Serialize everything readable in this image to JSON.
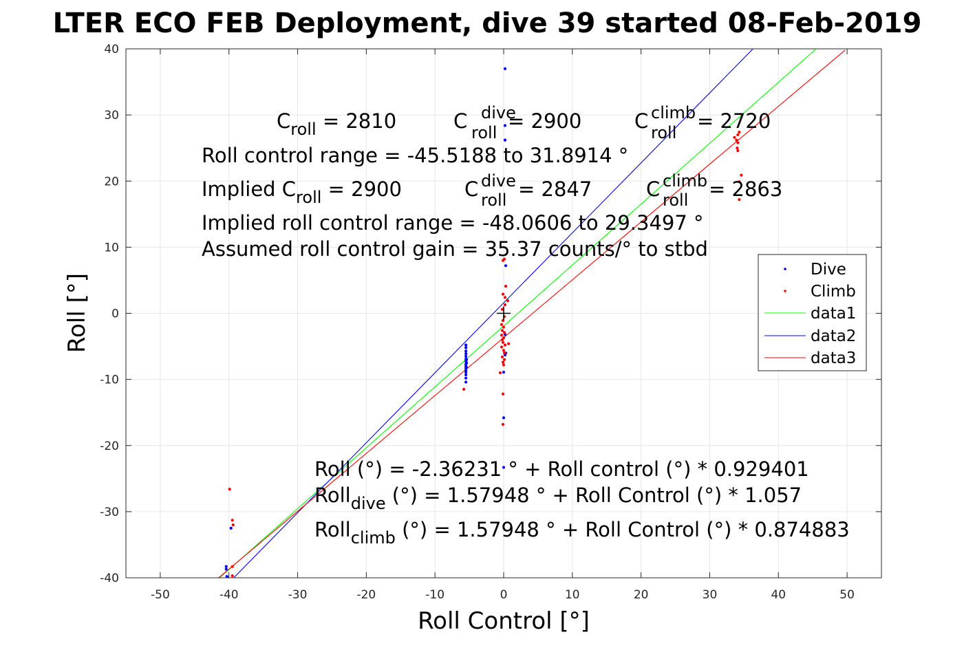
{
  "chart_data": {
    "type": "scatter",
    "title": "LTER ECO FEB Deployment, dive 39 started 08-Feb-2019",
    "xlabel": "Roll Control [°]",
    "ylabel": "Roll [°]",
    "xlim": [
      -55,
      55
    ],
    "ylim": [
      -40,
      40
    ],
    "xticks": [
      -50,
      -40,
      -30,
      -20,
      -10,
      0,
      10,
      20,
      30,
      40,
      50
    ],
    "yticks": [
      -40,
      -30,
      -20,
      -10,
      0,
      10,
      20,
      30,
      40
    ],
    "grid": true,
    "legend_placement": "right",
    "legend": [
      "Dive",
      "Climb",
      "data1",
      "data2",
      "data3"
    ],
    "marker": [
      0,
      0
    ],
    "series": [
      {
        "name": "Dive",
        "kind": "points",
        "color": "#0000ff",
        "points": [
          [
            -40.4,
            -38.3
          ],
          [
            -40.4,
            -38.7
          ],
          [
            -40.3,
            -39.8
          ],
          [
            -40.2,
            -40.0
          ],
          [
            -39.7,
            -32.5
          ],
          [
            -5.5,
            -4.8
          ],
          [
            -5.5,
            -5.2
          ],
          [
            -5.5,
            -5.7
          ],
          [
            -5.5,
            -6.1
          ],
          [
            -5.5,
            -6.5
          ],
          [
            -5.5,
            -6.9
          ],
          [
            -5.5,
            -7.3
          ],
          [
            -5.5,
            -7.7
          ],
          [
            -5.5,
            -8.0
          ],
          [
            -5.5,
            -8.3
          ],
          [
            -5.5,
            -8.6
          ],
          [
            -5.5,
            -8.9
          ],
          [
            -5.5,
            -9.3
          ],
          [
            -5.5,
            -9.8
          ],
          [
            -5.5,
            -10.4
          ],
          [
            -5.4,
            -7.0
          ],
          [
            -5.4,
            -7.5
          ],
          [
            -5.4,
            -8.2
          ],
          [
            0.2,
            37.0
          ],
          [
            0.2,
            28.4
          ],
          [
            0.2,
            26.2
          ],
          [
            0.3,
            7.2
          ],
          [
            0.2,
            -3.2
          ],
          [
            0.3,
            -6.0
          ],
          [
            0.2,
            -6.3
          ],
          [
            0.0,
            -8.9
          ],
          [
            0.0,
            -15.8
          ],
          [
            0.0,
            -23.3
          ]
        ]
      },
      {
        "name": "Climb",
        "kind": "points",
        "color": "#ff0000",
        "points": [
          [
            -39.9,
            -26.6
          ],
          [
            -39.5,
            -31.3
          ],
          [
            -39.4,
            -32.0
          ],
          [
            -39.5,
            -38.3
          ],
          [
            -39.5,
            -39.7
          ],
          [
            -5.8,
            -11.5
          ],
          [
            -0.1,
            8.0
          ],
          [
            0.1,
            8.2
          ],
          [
            0.3,
            4.1
          ],
          [
            -0.1,
            2.9
          ],
          [
            0.2,
            2.4
          ],
          [
            0.6,
            1.9
          ],
          [
            0.2,
            1.3
          ],
          [
            -0.2,
            0.6
          ],
          [
            0.1,
            -0.5
          ],
          [
            -0.1,
            -1.1
          ],
          [
            -0.3,
            -1.7
          ],
          [
            0.0,
            -2.1
          ],
          [
            -0.2,
            -2.6
          ],
          [
            0.1,
            -2.9
          ],
          [
            -0.3,
            -3.3
          ],
          [
            0.0,
            -3.7
          ],
          [
            -0.2,
            -4.0
          ],
          [
            -0.1,
            -4.4
          ],
          [
            0.2,
            -4.8
          ],
          [
            -0.3,
            -5.1
          ],
          [
            0.0,
            -5.6
          ],
          [
            0.1,
            -6.0
          ],
          [
            -0.2,
            -6.6
          ],
          [
            0.1,
            -7.0
          ],
          [
            -0.1,
            -7.4
          ],
          [
            0.0,
            -7.8
          ],
          [
            0.7,
            -4.6
          ],
          [
            -0.5,
            -9.0
          ],
          [
            -0.1,
            -12.2
          ],
          [
            -0.1,
            -16.8
          ],
          [
            33.6,
            26.6
          ],
          [
            33.9,
            26.2
          ],
          [
            34.1,
            27.0
          ],
          [
            34.3,
            27.4
          ],
          [
            34.1,
            25.8
          ],
          [
            34.0,
            25.0
          ],
          [
            34.1,
            24.6
          ],
          [
            34.6,
            20.9
          ],
          [
            34.3,
            19.9
          ],
          [
            34.3,
            17.2
          ]
        ]
      },
      {
        "name": "data1",
        "kind": "line",
        "color": "#00ff00",
        "x": [
          -42.0,
          45.5
        ],
        "y": [
          -40.6,
          40.0
        ]
      },
      {
        "name": "data2",
        "kind": "line",
        "color": "#0000ff",
        "x": [
          -39.3,
          36.3
        ],
        "y": [
          -40.0,
          40.0
        ]
      },
      {
        "name": "data3",
        "kind": "line",
        "color": "#ff0000",
        "x": [
          -41.5,
          49.7
        ],
        "y": [
          -40.0,
          39.8
        ]
      }
    ]
  },
  "annotations": {
    "line1": {
      "a_base": "C",
      "a_sub": "roll",
      "a_tail": " = 2810",
      "b_base": "C",
      "b_sup": "dive",
      "b_sub": "roll",
      "b_tail": " = 2900",
      "c_base": "C",
      "c_sup": "climb",
      "c_sub": "roll",
      "c_tail": " = 2720"
    },
    "line2": "Roll control range = -45.5188 to 31.8914 °",
    "line3": {
      "a_base": "Implied C",
      "a_sub": "roll",
      "a_tail": " = 2900",
      "b_base": "C",
      "b_sup": "dive",
      "b_sub": "roll",
      "b_tail": " = 2847",
      "c_base": "C",
      "c_sup": "climb",
      "c_sub": "roll",
      "c_tail": " = 2863"
    },
    "line4": "Implied roll control range = -48.0606 to 29.3497 °",
    "line5": "Assumed roll control gain = 35.37 counts/° to stbd",
    "fit1": "Roll (°) = -2.36231 ° + Roll control (°) * 0.929401",
    "fit2": {
      "base": "Roll",
      "sub": "dive",
      "tail": " (°) = 1.57948 ° + Roll Control (°) * 1.057"
    },
    "fit3": {
      "base": "Roll",
      "sub": "climb",
      "tail": " (°) = 1.57948 ° + Roll Control (°) * 0.874883"
    }
  }
}
